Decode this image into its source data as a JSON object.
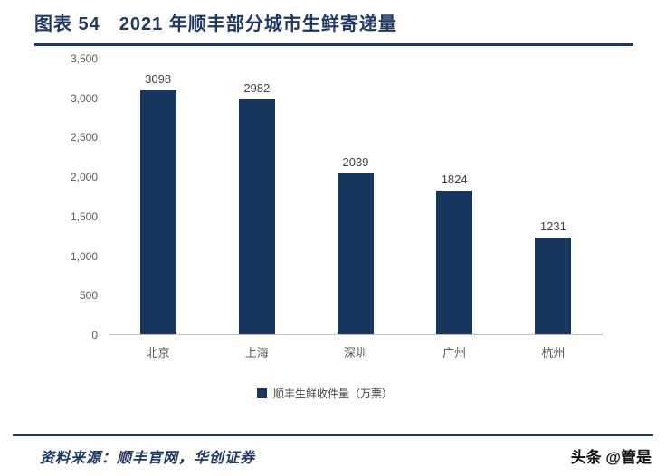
{
  "header": {
    "title": "图表 54　2021 年顺丰部分城市生鲜寄递量"
  },
  "chart_data": {
    "type": "bar",
    "title": "2021 年顺丰部分城市生鲜寄递量",
    "categories": [
      "北京",
      "上海",
      "深圳",
      "广州",
      "杭州"
    ],
    "values": [
      3098,
      2982,
      2039,
      1824,
      1231
    ],
    "series_name": "顺丰生鲜收件量（万票）",
    "ylim": [
      0,
      3500
    ],
    "ytick_step": 500,
    "ytick_labels": [
      "3,500",
      "3,000",
      "2,500",
      "2,000",
      "1,500",
      "1,000",
      "500",
      "0"
    ],
    "grid": false,
    "legend_position": "bottom",
    "bar_color": "#17375E",
    "value_label_color": "#404040"
  },
  "legend": {
    "label": "顺丰生鲜收件量（万票）"
  },
  "footer": {
    "source": "资料来源：顺丰官网，华创证券",
    "watermark": "头条 @管是"
  },
  "colors": {
    "accent": "#1F3864",
    "axis_text": "#595959",
    "axis_line": "#BFBFBF"
  }
}
